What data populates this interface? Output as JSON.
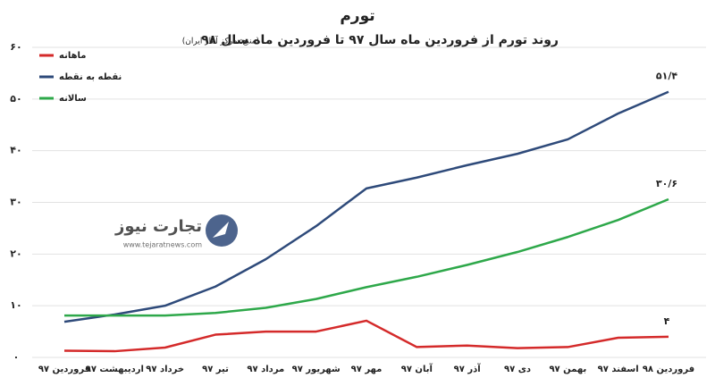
{
  "chart_data": {
    "type": "line",
    "title": "تورم",
    "subtitle": "روند تورم از فروردین ماه سال ۹۷ تا فروردین ماه سال ۹۸",
    "source": "(منبع: مرکز آمار ایران)",
    "categories": [
      "فروردین ۹۷",
      "اردیبهشت ۹۷",
      "خرداد ۹۷",
      "تیر ۹۷",
      "مرداد ۹۷",
      "شهریور ۹۷",
      "مهر ۹۷",
      "آبان ۹۷",
      "آذر ۹۷",
      "دی ۹۷",
      "بهمن ۹۷",
      "اسفند ۹۷",
      "فروردین ۹۸"
    ],
    "series": [
      {
        "name": "ماهانه",
        "color": "#d42a2a",
        "values": [
          1.3,
          1.2,
          1.9,
          4.4,
          5.0,
          5.0,
          7.1,
          2.0,
          2.3,
          1.8,
          2.0,
          3.8,
          4
        ],
        "value_labels": [
          null,
          null,
          null,
          null,
          null,
          null,
          null,
          null,
          null,
          null,
          null,
          null,
          "۴"
        ]
      },
      {
        "name": "نقطه به نقطه",
        "color": "#2e4a7a",
        "values": [
          6.9,
          8.3,
          10,
          13.7,
          19,
          25.4,
          32.7,
          34.8,
          37.2,
          39.4,
          42.2,
          47.2,
          51.4
        ],
        "value_labels": [
          null,
          null,
          null,
          null,
          null,
          null,
          null,
          null,
          null,
          null,
          null,
          null,
          "۵۱/۴"
        ]
      },
      {
        "name": "سالانه",
        "color": "#2ea84a",
        "values": [
          8.1,
          8.1,
          8.1,
          8.6,
          9.6,
          11.3,
          13.6,
          15.6,
          17.9,
          20.4,
          23.3,
          26.6,
          30.6
        ],
        "value_labels": [
          null,
          null,
          null,
          null,
          null,
          null,
          null,
          null,
          null,
          null,
          null,
          null,
          "۳۰/۶"
        ]
      }
    ],
    "ylim": [
      0,
      60
    ],
    "yticks": [
      {
        "value": 0,
        "label": "۰"
      },
      {
        "value": 10,
        "label": "۱۰"
      },
      {
        "value": 20,
        "label": "۲۰"
      },
      {
        "value": 30,
        "label": "۳۰"
      },
      {
        "value": 40,
        "label": "۴۰"
      },
      {
        "value": 50,
        "label": "۵۰"
      },
      {
        "value": 60,
        "label": "۶۰"
      }
    ],
    "grid": true,
    "legend": "top-left",
    "watermark": {
      "name": "تجارت نیوز",
      "url": "www.tejaratnews.com"
    }
  }
}
